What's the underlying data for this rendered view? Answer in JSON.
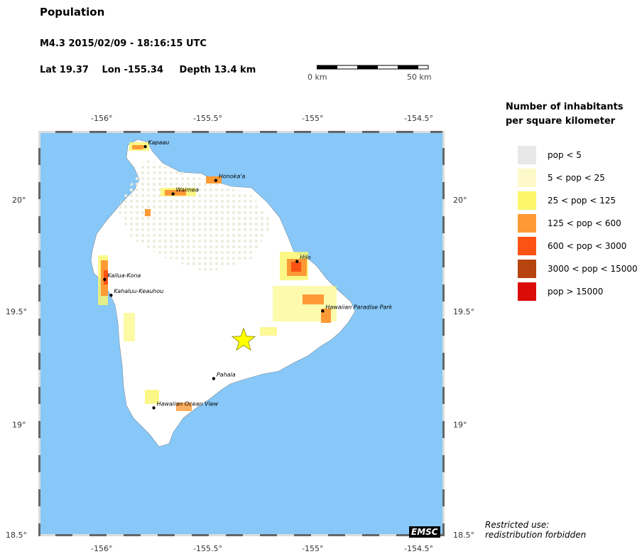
{
  "header": {
    "title": "Population",
    "event": "M4.3  2015/02/09 - 18:16:15 UTC",
    "lat": "Lat 19.37",
    "lon": "Lon -155.34",
    "depth": "Depth  13.4 km"
  },
  "scale_bar": {
    "start_label": "0 km",
    "end_label": "50 km"
  },
  "axes": {
    "top_lon_ticks": [
      "-156°",
      "-155.5°",
      "-155°",
      "-154.5°"
    ],
    "bottom_lon_ticks": [
      "-156°",
      "-155.5°",
      "-155°",
      "-154.5°"
    ],
    "left_lat_ticks": [
      "20°",
      "19.5°",
      "19°",
      "18.5°"
    ],
    "right_lat_ticks": [
      "20°",
      "19.5°",
      "19°",
      "18.5°"
    ],
    "lon_range": [
      -156.3,
      -154.4
    ],
    "lat_range": [
      18.5,
      20.3
    ]
  },
  "epicenter": {
    "lat": 19.37,
    "lon": -155.34,
    "symbol": "star-icon",
    "color": "#ffff00"
  },
  "cities": [
    {
      "name": "Kapaau",
      "lat": 20.23,
      "lon": -155.8
    },
    {
      "name": "Honoka'a",
      "lat": 20.08,
      "lon": -155.47
    },
    {
      "name": "Waimea",
      "lat": 20.02,
      "lon": -155.67
    },
    {
      "name": "Hilo",
      "lat": 19.72,
      "lon": -155.09
    },
    {
      "name": "Kailua-Kona",
      "lat": 19.64,
      "lon": -155.99
    },
    {
      "name": "Kahaluu-Keauhou",
      "lat": 19.57,
      "lon": -155.96
    },
    {
      "name": "Hawaiian Paradise Park",
      "lat": 19.5,
      "lon": -154.97
    },
    {
      "name": "Pahala",
      "lat": 19.2,
      "lon": -155.48
    },
    {
      "name": "Hawaiian Ocean View",
      "lat": 19.07,
      "lon": -155.76
    }
  ],
  "legend": {
    "title_line1": "Number of inhabitants",
    "title_line2": "per square kilometer",
    "items": [
      {
        "label": "pop < 5",
        "color": "#e8e8e8"
      },
      {
        "label": "5 < pop < 25",
        "color": "#fdf9c8"
      },
      {
        "label": "25 < pop < 125",
        "color": "#fbf66a"
      },
      {
        "label": "125 < pop < 600",
        "color": "#fd9a36"
      },
      {
        "label": "600 < pop < 3000",
        "color": "#fc5314"
      },
      {
        "label": "3000 < pop < 15000",
        "color": "#b6440f"
      },
      {
        "label": "pop > 15000",
        "color": "#db0b07"
      }
    ]
  },
  "colors": {
    "ocean": "#87c8f8",
    "land": "#ffffff"
  },
  "credit": {
    "logo": "EMSC",
    "restricted_line1": "Restricted use:",
    "restricted_line2": "redistribution forbidden"
  }
}
